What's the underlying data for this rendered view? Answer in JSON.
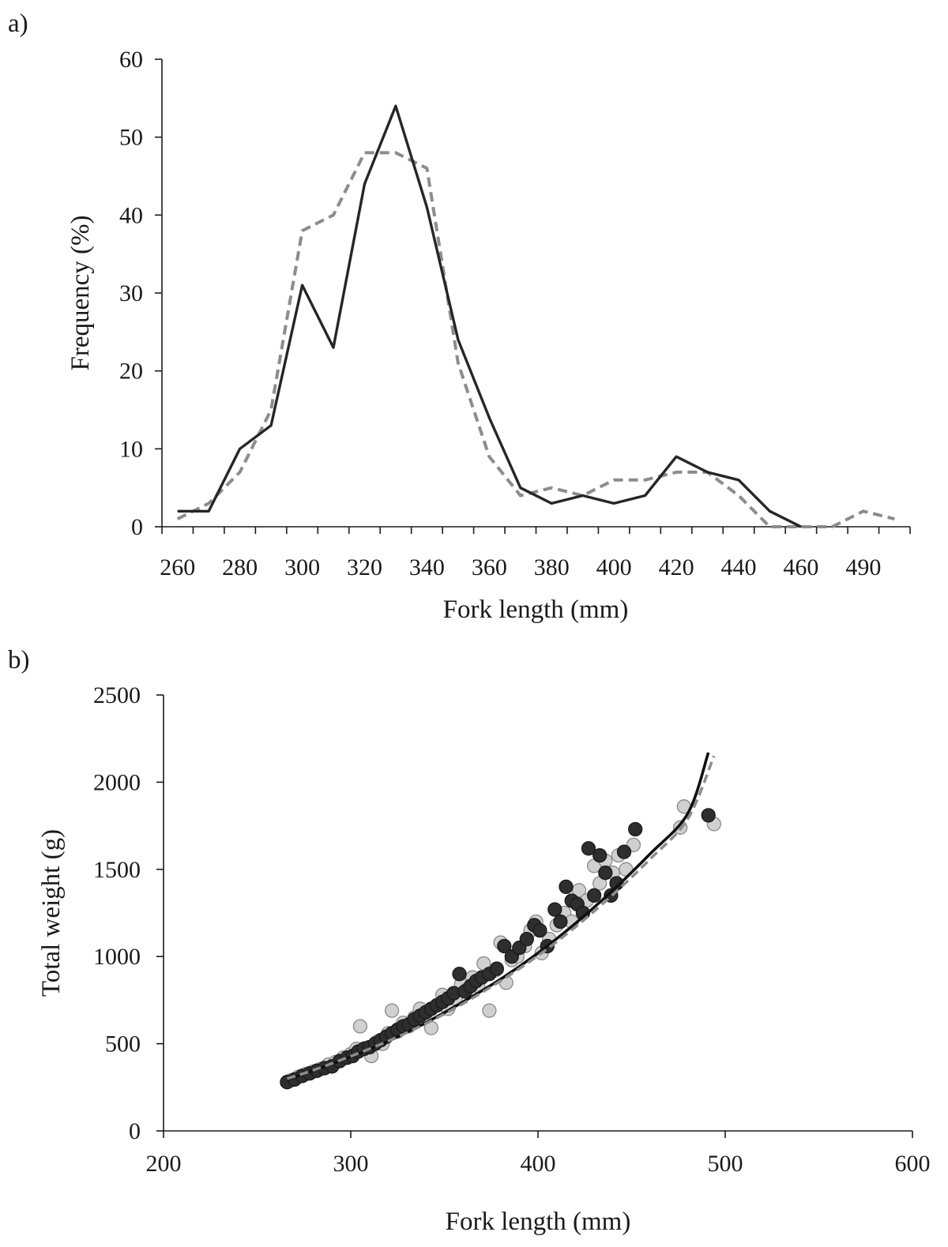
{
  "panels": {
    "a": {
      "label": "a)"
    },
    "b": {
      "label": "b)"
    }
  },
  "chart_data": [
    {
      "type": "line",
      "panel": "a)",
      "xlabel": "Fork length (mm)",
      "ylabel": "Frequency (%)",
      "ylim": [
        0,
        60
      ],
      "yticks": [
        "0",
        "10",
        "20",
        "30",
        "40",
        "50",
        "60"
      ],
      "categories": [
        "260",
        "270",
        "280",
        "290",
        "300",
        "310",
        "320",
        "330",
        "340",
        "350",
        "360",
        "370",
        "380",
        "390",
        "400",
        "410",
        "420",
        "430",
        "440",
        "450",
        "460",
        "470",
        "480",
        "490"
      ],
      "tick_labels": [
        "260",
        "280",
        "300",
        "320",
        "340",
        "360",
        "380",
        "400",
        "420",
        "440",
        "460",
        "490"
      ],
      "grid": false,
      "series": [
        {
          "style": "solid",
          "color": "#262626",
          "values": [
            2,
            2,
            10,
            13,
            31,
            23,
            44,
            54,
            41,
            24,
            14,
            5,
            3,
            4,
            3,
            4,
            9,
            7,
            6,
            2,
            0,
            null,
            null,
            null
          ]
        },
        {
          "style": "dashed",
          "color": "#8c8c8c",
          "values": [
            1,
            3,
            7,
            15,
            38,
            40,
            48,
            48,
            46,
            21,
            9,
            4,
            5,
            4,
            6,
            6,
            7,
            7,
            4,
            0,
            0,
            0,
            2,
            1
          ]
        }
      ]
    },
    {
      "type": "scatter",
      "panel": "b)",
      "xlabel": "Fork length (mm)",
      "ylabel": "Total weight (g)",
      "xlim": [
        200,
        600
      ],
      "ylim": [
        0,
        2500
      ],
      "xticks": [
        "200",
        "300",
        "400",
        "500",
        "600"
      ],
      "yticks": [
        "0",
        "500",
        "1000",
        "1500",
        "2000",
        "2500"
      ],
      "grid": false,
      "series": [
        {
          "marker": "light-circle",
          "color": "#d0d0d0",
          "points": [
            [
              268,
              290
            ],
            [
              272,
              310
            ],
            [
              276,
              325
            ],
            [
              280,
              340
            ],
            [
              284,
              355
            ],
            [
              288,
              380
            ],
            [
              292,
              395
            ],
            [
              296,
              420
            ],
            [
              300,
              440
            ],
            [
              303,
              470
            ],
            [
              305,
              600
            ],
            [
              308,
              475
            ],
            [
              311,
              430
            ],
            [
              314,
              510
            ],
            [
              317,
              500
            ],
            [
              320,
              560
            ],
            [
              322,
              690
            ],
            [
              325,
              570
            ],
            [
              328,
              620
            ],
            [
              331,
              600
            ],
            [
              334,
              650
            ],
            [
              337,
              700
            ],
            [
              340,
              640
            ],
            [
              343,
              590
            ],
            [
              346,
              720
            ],
            [
              349,
              780
            ],
            [
              352,
              700
            ],
            [
              356,
              760
            ],
            [
              359,
              840
            ],
            [
              362,
              810
            ],
            [
              365,
              880
            ],
            [
              368,
              830
            ],
            [
              371,
              960
            ],
            [
              374,
              690
            ],
            [
              377,
              920
            ],
            [
              380,
              1080
            ],
            [
              383,
              850
            ],
            [
              386,
              980
            ],
            [
              389,
              1000
            ],
            [
              393,
              1060
            ],
            [
              396,
              1150
            ],
            [
              399,
              1200
            ],
            [
              402,
              1020
            ],
            [
              406,
              1100
            ],
            [
              410,
              1180
            ],
            [
              414,
              1250
            ],
            [
              418,
              1200
            ],
            [
              422,
              1380
            ],
            [
              426,
              1320
            ],
            [
              430,
              1520
            ],
            [
              433,
              1420
            ],
            [
              436,
              1550
            ],
            [
              440,
              1480
            ],
            [
              443,
              1580
            ],
            [
              447,
              1500
            ],
            [
              451,
              1640
            ],
            [
              476,
              1740
            ],
            [
              478,
              1860
            ],
            [
              494,
              1760
            ]
          ]
        },
        {
          "marker": "dark-circle",
          "color": "#2e2e2e",
          "points": [
            [
              266,
              280
            ],
            [
              270,
              295
            ],
            [
              274,
              315
            ],
            [
              278,
              330
            ],
            [
              282,
              345
            ],
            [
              286,
              360
            ],
            [
              290,
              370
            ],
            [
              294,
              400
            ],
            [
              298,
              420
            ],
            [
              301,
              430
            ],
            [
              304,
              455
            ],
            [
              307,
              470
            ],
            [
              310,
              480
            ],
            [
              313,
              500
            ],
            [
              316,
              520
            ],
            [
              319,
              540
            ],
            [
              322,
              560
            ],
            [
              325,
              580
            ],
            [
              328,
              600
            ],
            [
              331,
              610
            ],
            [
              334,
              640
            ],
            [
              337,
              660
            ],
            [
              340,
              680
            ],
            [
              343,
              700
            ],
            [
              346,
              720
            ],
            [
              349,
              740
            ],
            [
              352,
              760
            ],
            [
              355,
              790
            ],
            [
              358,
              900
            ],
            [
              361,
              800
            ],
            [
              364,
              830
            ],
            [
              367,
              860
            ],
            [
              370,
              880
            ],
            [
              374,
              900
            ],
            [
              378,
              930
            ],
            [
              382,
              1060
            ],
            [
              386,
              1000
            ],
            [
              390,
              1050
            ],
            [
              394,
              1100
            ],
            [
              398,
              1180
            ],
            [
              401,
              1150
            ],
            [
              405,
              1060
            ],
            [
              409,
              1270
            ],
            [
              412,
              1200
            ],
            [
              415,
              1400
            ],
            [
              418,
              1320
            ],
            [
              421,
              1300
            ],
            [
              424,
              1250
            ],
            [
              427,
              1620
            ],
            [
              430,
              1350
            ],
            [
              433,
              1580
            ],
            [
              436,
              1480
            ],
            [
              439,
              1350
            ],
            [
              442,
              1420
            ],
            [
              446,
              1600
            ],
            [
              452,
              1730
            ],
            [
              491,
              1810
            ]
          ]
        },
        {
          "type": "line",
          "style": "solid",
          "color": "#111111",
          "fit": "power",
          "points": [
            [
              266,
              295
            ],
            [
              280,
              345
            ],
            [
              300,
              425
            ],
            [
              320,
              515
            ],
            [
              340,
              620
            ],
            [
              360,
              740
            ],
            [
              380,
              870
            ],
            [
              400,
              1020
            ],
            [
              420,
              1190
            ],
            [
              440,
              1380
            ],
            [
              460,
              1590
            ],
            [
              480,
              1820
            ],
            [
              491,
              2170
            ]
          ]
        },
        {
          "type": "line",
          "style": "dashed",
          "color": "#8c8c8c",
          "fit": "power",
          "points": [
            [
              266,
              300
            ],
            [
              280,
              348
            ],
            [
              300,
              428
            ],
            [
              320,
              515
            ],
            [
              340,
              615
            ],
            [
              360,
              730
            ],
            [
              380,
              860
            ],
            [
              400,
              1005
            ],
            [
              420,
              1170
            ],
            [
              440,
              1355
            ],
            [
              460,
              1560
            ],
            [
              480,
              1790
            ],
            [
              494,
              2150
            ]
          ]
        }
      ]
    }
  ]
}
